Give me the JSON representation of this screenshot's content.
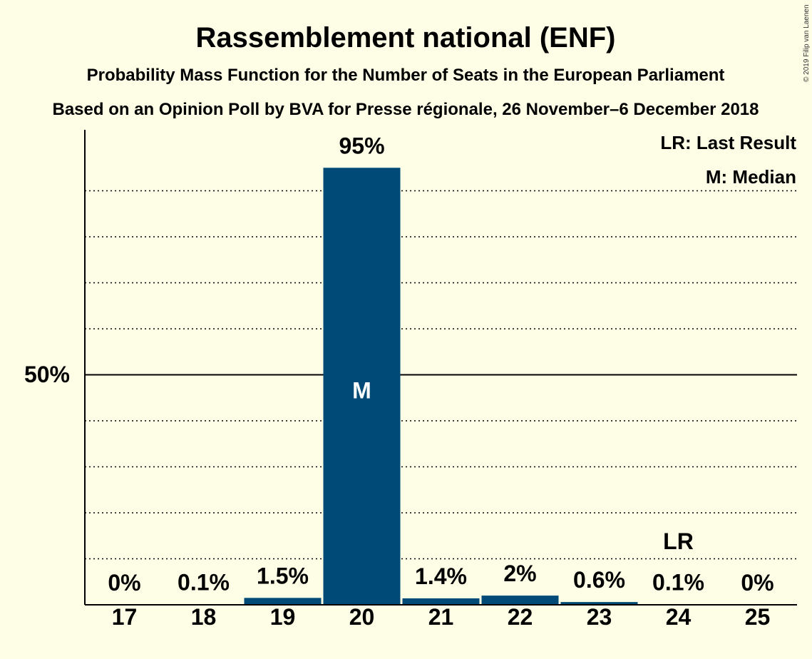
{
  "chart_data": {
    "type": "bar",
    "title": "Rassemblement national (ENF)",
    "subtitle": "Probability Mass Function for the Number of Seats in the European Parliament",
    "subtitle2": "Based on an Opinion Poll by BVA for Presse régionale, 26 November–6 December 2018",
    "categories": [
      "17",
      "18",
      "19",
      "20",
      "21",
      "22",
      "23",
      "24",
      "25"
    ],
    "values": [
      0,
      0.1,
      1.5,
      95,
      1.4,
      2,
      0.6,
      0.1,
      0
    ],
    "value_labels": [
      "0%",
      "0.1%",
      "1.5%",
      "95%",
      "1.4%",
      "2%",
      "0.6%",
      "0.1%",
      "0%"
    ],
    "ylim": [
      0,
      100
    ],
    "y_tick_label": "50%",
    "y_tick_value": 50,
    "grid": true,
    "median_category": "20",
    "median_marker": "M",
    "last_result_category": "24",
    "last_result_marker": "LR",
    "legend": [
      "LR: Last Result",
      "M: Median"
    ],
    "legend_position": "top-right",
    "bar_color": "#004a77",
    "copyright": "© 2019 Filip van Laenen"
  }
}
